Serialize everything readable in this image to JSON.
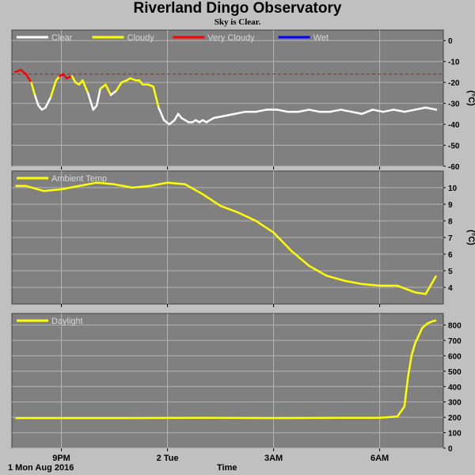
{
  "title": "Riverland Dingo Observatory",
  "subtitle": "Sky is Clear.",
  "date_label": "1 Mon Aug 2016",
  "x_axis_label": "Time",
  "time_ticks": [
    {
      "label": "9PM",
      "hour": 2
    },
    {
      "label": "2 Tue",
      "hour": 5
    },
    {
      "label": "3AM",
      "hour": 8
    },
    {
      "label": "6AM",
      "hour": 11
    }
  ],
  "colors": {
    "panel_bg": "#808080",
    "page_bg": "#c0c0c0",
    "grid": "#b4b4b4",
    "clear": "#ffffff",
    "cloudy": "#ffff00",
    "very_cloudy": "#ff0000",
    "wet": "#0000ff",
    "threshold": "#ff0000"
  },
  "chart_data": [
    {
      "type": "line",
      "name": "sky",
      "xlim": [
        0.6,
        12.8
      ],
      "ylim": [
        -60,
        5
      ],
      "yticks": [
        0,
        -10,
        -20,
        -30,
        -40,
        -50,
        -60
      ],
      "ylabel": "(°C)",
      "legend": [
        {
          "label": "Clear",
          "color": "#ffffff"
        },
        {
          "label": "Cloudy",
          "color": "#ffff00"
        },
        {
          "label": "Very Cloudy",
          "color": "#ff0000"
        },
        {
          "label": "Wet",
          "color": "#0000ff"
        }
      ],
      "threshold": -16,
      "x": [
        0.7,
        0.85,
        1.0,
        1.15,
        1.25,
        1.35,
        1.45,
        1.55,
        1.7,
        1.85,
        1.95,
        2.05,
        2.15,
        2.3,
        2.4,
        2.5,
        2.6,
        2.75,
        2.9,
        3.0,
        3.1,
        3.25,
        3.4,
        3.55,
        3.7,
        3.85,
        3.95,
        4.1,
        4.2,
        4.3,
        4.45,
        4.6,
        4.75,
        4.9,
        5.05,
        5.2,
        5.3,
        5.4,
        5.5,
        5.6,
        5.7,
        5.8,
        5.9,
        6.0,
        6.1,
        6.3,
        6.6,
        6.9,
        7.2,
        7.5,
        7.8,
        8.1,
        8.4,
        8.7,
        9.0,
        9.3,
        9.6,
        9.9,
        10.2,
        10.5,
        10.8,
        11.1,
        11.4,
        11.7,
        12.0,
        12.3,
        12.6
      ],
      "y": [
        -15,
        -14,
        -16,
        -20,
        -26,
        -31,
        -33,
        -32,
        -27,
        -19,
        -17,
        -16,
        -18,
        -17,
        -20,
        -21,
        -19,
        -25,
        -33,
        -31,
        -23,
        -21,
        -26,
        -24,
        -20,
        -19,
        -18,
        -19,
        -19,
        -21,
        -21,
        -22,
        -32,
        -38,
        -40,
        -38,
        -35,
        -37,
        -38,
        -39,
        -39,
        -38,
        -39,
        -38,
        -39,
        -37,
        -36,
        -35,
        -34,
        -34,
        -33,
        -33,
        -34,
        -34,
        -33,
        -34,
        -34,
        -33,
        -34,
        -35,
        -33,
        -34,
        -33,
        -34,
        -33,
        -32,
        -33
      ],
      "category": [
        "very_cloudy",
        "very_cloudy",
        "very_cloudy",
        "cloudy",
        "clear",
        "clear",
        "clear",
        "clear",
        "cloudy",
        "cloudy",
        "very_cloudy",
        "very_cloudy",
        "very_cloudy",
        "cloudy",
        "cloudy",
        "cloudy",
        "cloudy",
        "clear",
        "clear",
        "clear",
        "cloudy",
        "cloudy",
        "clear",
        "cloudy",
        "cloudy",
        "cloudy",
        "cloudy",
        "cloudy",
        "cloudy",
        "cloudy",
        "cloudy",
        "cloudy",
        "clear",
        "clear",
        "clear",
        "clear",
        "clear",
        "clear",
        "clear",
        "clear",
        "clear",
        "clear",
        "clear",
        "clear",
        "clear",
        "clear",
        "clear",
        "clear",
        "clear",
        "clear",
        "clear",
        "clear",
        "clear",
        "clear",
        "clear",
        "clear",
        "clear",
        "clear",
        "clear",
        "clear",
        "clear",
        "clear",
        "clear",
        "clear",
        "clear",
        "clear",
        "clear"
      ]
    },
    {
      "type": "line",
      "name": "temp",
      "xlim": [
        0.6,
        12.8
      ],
      "ylim": [
        3,
        11
      ],
      "yticks": [
        4,
        5,
        6,
        7,
        8,
        9,
        10
      ],
      "ylabel": "(°C)",
      "legend": [
        {
          "label": "Ambient Temp",
          "color": "#ffff00"
        }
      ],
      "x": [
        0.7,
        1.0,
        1.5,
        2.0,
        2.5,
        3.0,
        3.5,
        4.0,
        4.5,
        5.0,
        5.5,
        6.0,
        6.5,
        7.0,
        7.5,
        8.0,
        8.5,
        9.0,
        9.5,
        10.0,
        10.5,
        11.0,
        11.5,
        12.0,
        12.3,
        12.6
      ],
      "y": [
        10.1,
        10.1,
        9.8,
        9.9,
        10.1,
        10.3,
        10.2,
        10.0,
        10.1,
        10.3,
        10.2,
        9.6,
        8.9,
        8.5,
        8.0,
        7.3,
        6.2,
        5.3,
        4.7,
        4.4,
        4.2,
        4.1,
        4.1,
        3.7,
        3.6,
        4.7
      ]
    },
    {
      "type": "line",
      "name": "daylight",
      "xlim": [
        0.6,
        12.8
      ],
      "ylim": [
        0,
        875
      ],
      "yticks": [
        0,
        100,
        200,
        300,
        400,
        500,
        600,
        700,
        800
      ],
      "ylabel": "",
      "legend": [
        {
          "label": "Daylight",
          "color": "#ffff00"
        }
      ],
      "x": [
        0.7,
        2.0,
        4.0,
        6.0,
        8.0,
        10.0,
        11.0,
        11.5,
        11.7,
        11.8,
        11.9,
        12.0,
        12.1,
        12.2,
        12.35,
        12.5,
        12.6
      ],
      "y": [
        195,
        195,
        195,
        197,
        195,
        197,
        197,
        205,
        270,
        460,
        600,
        680,
        730,
        780,
        810,
        825,
        830
      ]
    }
  ]
}
